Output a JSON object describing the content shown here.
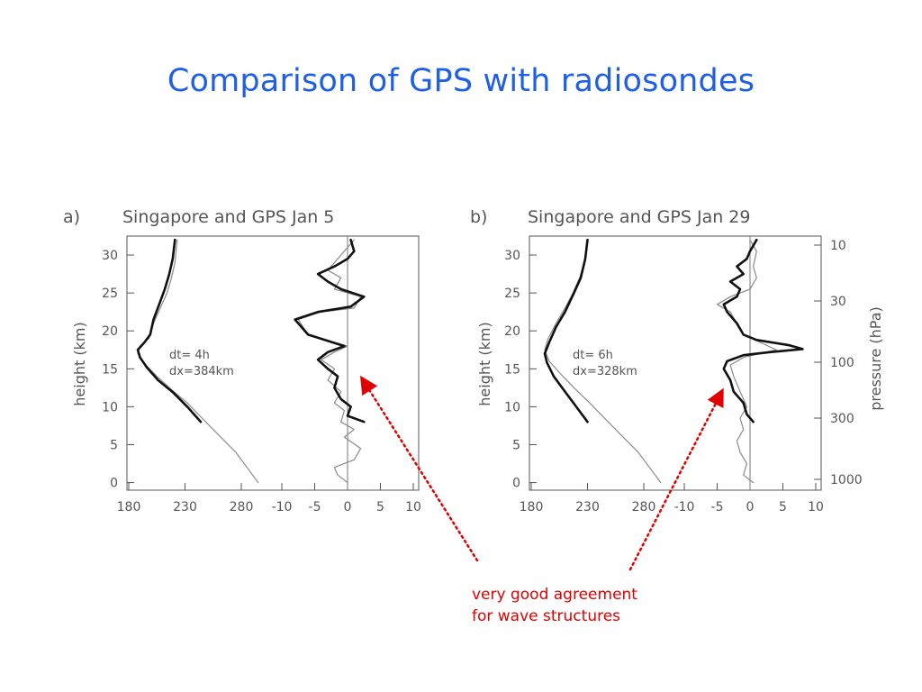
{
  "slide": {
    "title": "Comparison of GPS with radiosondes",
    "callout_line1": "very good agreement",
    "callout_line2": "for wave structures",
    "callout_color": "#e00000",
    "title_color": "#1f5fe8"
  },
  "chart_data": [
    {
      "type": "line",
      "panel_label": "a)",
      "title": "Singapore and GPS Jan 5",
      "ylabel": "height (km)",
      "ylim": [
        -1,
        32.5
      ],
      "yticks": [
        0,
        5,
        10,
        15,
        20,
        25,
        30
      ],
      "temperature_xlim": [
        180,
        300
      ],
      "temperature_xticks": [
        180,
        230,
        280
      ],
      "perturbation_xlim": [
        -10,
        10
      ],
      "perturbation_xticks": [
        -10,
        -5,
        0,
        5,
        10
      ],
      "annotation": [
        "dt= 4h",
        "dx=384km"
      ],
      "series": [
        {
          "group": "temperature",
          "style": "thin",
          "points": [
            [
              295,
              0
            ],
            [
              285,
              2
            ],
            [
              275,
              4
            ],
            [
              265,
              5.5
            ],
            [
              255,
              7
            ],
            [
              245,
              8.5
            ],
            [
              232,
              10.5
            ],
            [
              220,
              12
            ],
            [
              205,
              14
            ],
            [
              195,
              15.5
            ],
            [
              188,
              17
            ],
            [
              190,
              18
            ],
            [
              198,
              19
            ],
            [
              202,
              21
            ],
            [
              208,
              23
            ],
            [
              214,
              25
            ],
            [
              218,
              27
            ],
            [
              221,
              29
            ],
            [
              223,
              32
            ]
          ]
        },
        {
          "group": "temperature",
          "style": "thick",
          "points": [
            [
              244,
              8
            ],
            [
              232,
              10
            ],
            [
              220,
              11.8
            ],
            [
              206,
              13.5
            ],
            [
              196,
              15.2
            ],
            [
              190,
              16.5
            ],
            [
              188,
              17.5
            ],
            [
              194,
              18.5
            ],
            [
              199,
              19.5
            ],
            [
              202,
              21.5
            ],
            [
              207,
              23.5
            ],
            [
              212,
              25.5
            ],
            [
              216,
              27.5
            ],
            [
              219,
              29.5
            ],
            [
              221,
              32
            ]
          ]
        },
        {
          "group": "perturbation",
          "style": "thin",
          "points": [
            [
              0,
              0
            ],
            [
              -1.5,
              1
            ],
            [
              -2,
              2
            ],
            [
              1,
              3
            ],
            [
              2,
              4.5
            ],
            [
              -0.5,
              6
            ],
            [
              1,
              7
            ],
            [
              -1,
              8
            ],
            [
              -0.5,
              9.5
            ],
            [
              -2,
              10.5
            ],
            [
              -1,
              12
            ],
            [
              -3,
              13.5
            ],
            [
              -2,
              15
            ],
            [
              -4,
              16.2
            ],
            [
              -2,
              17.2
            ],
            [
              0,
              18
            ],
            [
              -6,
              19.5
            ],
            [
              -7.5,
              21.5
            ],
            [
              -4,
              22.5
            ],
            [
              1,
              23
            ],
            [
              2,
              24.5
            ],
            [
              -2,
              25.5
            ],
            [
              -1,
              27
            ],
            [
              -3,
              28
            ],
            [
              -1.5,
              29.5
            ],
            [
              0,
              31
            ],
            [
              1,
              32
            ]
          ]
        },
        {
          "group": "perturbation",
          "style": "thick",
          "points": [
            [
              2.5,
              8
            ],
            [
              0,
              8.8
            ],
            [
              0.5,
              10
            ],
            [
              -1,
              11
            ],
            [
              -2,
              12.5
            ],
            [
              -1.5,
              14
            ],
            [
              -3,
              15
            ],
            [
              -4.5,
              16.2
            ],
            [
              -3,
              17.2
            ],
            [
              -0.5,
              18
            ],
            [
              -6,
              19.5
            ],
            [
              -8,
              21.5
            ],
            [
              -4.5,
              22.5
            ],
            [
              0.5,
              23.2
            ],
            [
              2.5,
              24.5
            ],
            [
              -1,
              25.5
            ],
            [
              -3,
              26.5
            ],
            [
              -4.5,
              27.5
            ],
            [
              -2,
              28.5
            ],
            [
              0,
              29.5
            ],
            [
              1,
              30.5
            ],
            [
              0.5,
              32
            ]
          ]
        }
      ]
    },
    {
      "type": "line",
      "panel_label": "b)",
      "title": "Singapore and GPS Jan 29",
      "ylabel": "height (km)",
      "right_ylabel": "pressure (hPa)",
      "right_yticks": [
        10,
        30,
        100,
        300,
        1000
      ],
      "ylim": [
        -1,
        32.5
      ],
      "yticks": [
        0,
        5,
        10,
        15,
        20,
        25,
        30
      ],
      "temperature_xlim": [
        180,
        300
      ],
      "temperature_xticks": [
        180,
        230,
        280
      ],
      "perturbation_xlim": [
        -10,
        10
      ],
      "perturbation_xticks": [
        -10,
        -5,
        0,
        5,
        10
      ],
      "annotation": [
        "dt= 6h",
        "dx=328km"
      ],
      "series": [
        {
          "group": "temperature",
          "style": "thin",
          "points": [
            [
              295,
              0
            ],
            [
              285,
              2
            ],
            [
              275,
              4
            ],
            [
              265,
              5.5
            ],
            [
              255,
              7
            ],
            [
              245,
              8.5
            ],
            [
              232,
              10.5
            ],
            [
              218,
              12.5
            ],
            [
              205,
              14.5
            ],
            [
              196,
              16
            ],
            [
              192,
              17.5
            ],
            [
              195,
              19
            ],
            [
              202,
              21
            ],
            [
              210,
              23
            ],
            [
              217,
              25
            ],
            [
              223,
              27
            ],
            [
              227,
              29
            ],
            [
              230,
              32
            ]
          ]
        },
        {
          "group": "temperature",
          "style": "thick",
          "points": [
            [
              230,
              8
            ],
            [
              220,
              10
            ],
            [
              210,
              12
            ],
            [
              200,
              14
            ],
            [
              194,
              15.8
            ],
            [
              192,
              17
            ],
            [
              196,
              18.5
            ],
            [
              202,
              20.5
            ],
            [
              210,
              22.5
            ],
            [
              218,
              25
            ],
            [
              224,
              27
            ],
            [
              228,
              29.5
            ],
            [
              230,
              32
            ]
          ]
        },
        {
          "group": "perturbation",
          "style": "thin",
          "points": [
            [
              0.5,
              0
            ],
            [
              -1,
              1
            ],
            [
              -0.5,
              2.5
            ],
            [
              -1.5,
              4
            ],
            [
              -2,
              5.5
            ],
            [
              -1,
              7
            ],
            [
              -1.5,
              8.5
            ],
            [
              -0.5,
              10
            ],
            [
              -1.5,
              12
            ],
            [
              -2.5,
              14
            ],
            [
              -3,
              15.5
            ],
            [
              -1,
              16.5
            ],
            [
              4,
              17.5
            ],
            [
              2,
              18.3
            ],
            [
              -1,
              19.5
            ],
            [
              -2,
              21
            ],
            [
              -3,
              22.5
            ],
            [
              -5,
              23.5
            ],
            [
              -3,
              24.5
            ],
            [
              0,
              25.5
            ],
            [
              1,
              27
            ],
            [
              0.5,
              28.5
            ],
            [
              1,
              30.5
            ],
            [
              0,
              32
            ]
          ]
        },
        {
          "group": "perturbation",
          "style": "thick",
          "points": [
            [
              0.5,
              8
            ],
            [
              -0.5,
              9
            ],
            [
              -1,
              10.5
            ],
            [
              -2.5,
              12
            ],
            [
              -3,
              13.5
            ],
            [
              -4,
              15
            ],
            [
              -3.5,
              16
            ],
            [
              -1,
              16.8
            ],
            [
              3,
              17.2
            ],
            [
              8,
              17.6
            ],
            [
              6,
              18.1
            ],
            [
              1,
              18.8
            ],
            [
              -1,
              19.5
            ],
            [
              -2,
              21
            ],
            [
              -3.5,
              22.5
            ],
            [
              -4,
              23.5
            ],
            [
              -2,
              24.5
            ],
            [
              -1.5,
              25.5
            ],
            [
              -3,
              26.5
            ],
            [
              -1,
              27.5
            ],
            [
              -2,
              28.5
            ],
            [
              -0.5,
              29.5
            ],
            [
              0,
              30.5
            ],
            [
              1,
              32
            ]
          ]
        }
      ]
    }
  ]
}
